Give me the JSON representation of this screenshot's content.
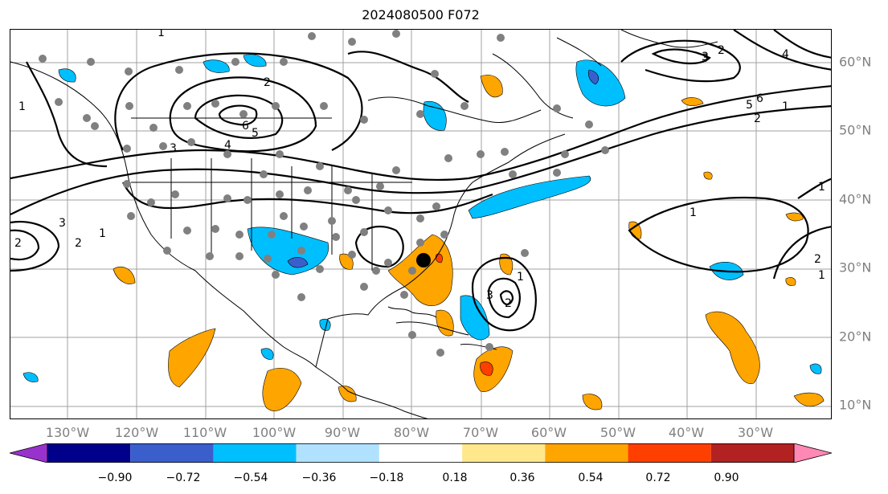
{
  "title": "2024080500 F072",
  "lon_labels": [
    "130°W",
    "120°W",
    "110°W",
    "100°W",
    "90°W",
    "80°W",
    "70°W",
    "60°W",
    "50°W",
    "40°W",
    "30°W"
  ],
  "lat_labels": [
    "60°N",
    "50°N",
    "40°N",
    "30°N",
    "20°N",
    "10°N"
  ],
  "colorbar": {
    "colors": [
      "#9932cc",
      "#00008b",
      "#3a5fcd",
      "#00bfff",
      "#b0e2ff",
      "#ffffff",
      "#ffe88c",
      "#ffa500",
      "#ff3f00",
      "#b22222",
      "#ff88b4"
    ],
    "under_color": "#9932cc",
    "over_color": "#ff88b4",
    "tick_labels": [
      "−0.90",
      "−0.72",
      "−0.54",
      "−0.36",
      "−0.18",
      "0.18",
      "0.36",
      "0.54",
      "0.72",
      "0.90"
    ]
  },
  "contour_labels": [
    "1",
    "2",
    "3",
    "4",
    "5",
    "6",
    "1",
    "2",
    "3",
    "4",
    "5",
    "6",
    "1",
    "2",
    "3",
    "1",
    "2",
    "3",
    "1",
    "2",
    "3",
    "1",
    "2",
    "1",
    "2",
    "1"
  ],
  "colors": {
    "land_line": "#000000",
    "station_marker": "#808080",
    "highlight_marker": "#000000",
    "grid": "#a0a0a0",
    "axis_label": "#808080"
  }
}
